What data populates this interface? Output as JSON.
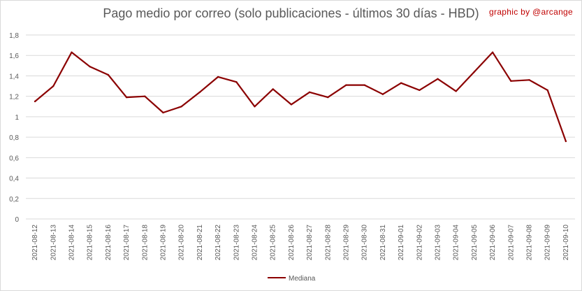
{
  "title": "Pago medio por correo (solo publicaciones - últimos 30 días - HBD)",
  "credit": "graphic by @arcange",
  "colors": {
    "series": "#8b0000",
    "grid": "#d9d9d9",
    "text": "#595959",
    "credit": "#c00000"
  },
  "chart_data": {
    "type": "line",
    "title": "Pago medio por correo (solo publicaciones - últimos 30 días - HBD)",
    "xlabel": "",
    "ylabel": "",
    "ylim": [
      0,
      1.8
    ],
    "ytick_step": 0.2,
    "yticks": [
      "0",
      "0,2",
      "0,4",
      "0,6",
      "0,8",
      "1",
      "1,2",
      "1,4",
      "1,6",
      "1,8"
    ],
    "grid": true,
    "legend_position": "bottom",
    "categories": [
      "2021-08-12",
      "2021-08-13",
      "2021-08-14",
      "2021-08-15",
      "2021-08-16",
      "2021-08-17",
      "2021-08-18",
      "2021-08-19",
      "2021-08-20",
      "2021-08-21",
      "2021-08-22",
      "2021-08-23",
      "2021-08-24",
      "2021-08-25",
      "2021-08-26",
      "2021-08-27",
      "2021-08-28",
      "2021-08-29",
      "2021-08-30",
      "2021-08-31",
      "2021-09-01",
      "2021-09-02",
      "2021-09-03",
      "2021-09-04",
      "2021-09-05",
      "2021-09-06",
      "2021-09-07",
      "2021-09-08",
      "2021-09-09",
      "2021-09-10"
    ],
    "series": [
      {
        "name": "Mediana",
        "color": "#8b0000",
        "values": [
          1.15,
          1.3,
          1.63,
          1.49,
          1.41,
          1.19,
          1.2,
          1.04,
          1.1,
          1.24,
          1.39,
          1.34,
          1.1,
          1.27,
          1.12,
          1.24,
          1.19,
          1.31,
          1.31,
          1.22,
          1.33,
          1.26,
          1.37,
          1.25,
          1.44,
          1.63,
          1.35,
          1.36,
          1.26,
          0.76
        ]
      }
    ]
  }
}
